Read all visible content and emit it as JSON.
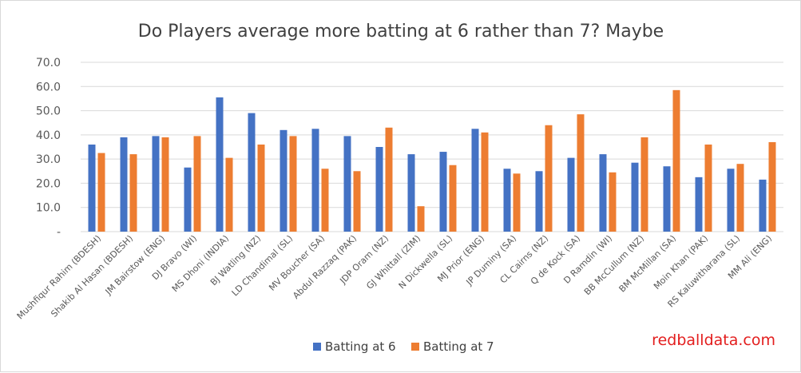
{
  "chart_data": {
    "type": "bar",
    "title": "Do Players average more batting at 6 rather than 7? Maybe",
    "xlabel": "",
    "ylabel": "",
    "ylim": [
      0,
      70
    ],
    "yticks": [
      "-",
      "10.0",
      "20.0",
      "30.0",
      "40.0",
      "50.0",
      "60.0",
      "70.0"
    ],
    "grid": true,
    "legend_position": "bottom",
    "categories": [
      "Mushfiqur Rahim (BDESH)",
      "Shakib Al Hasan (BDESH)",
      "JM Bairstow (ENG)",
      "DJ Bravo (WI)",
      "MS Dhoni (INDIA)",
      "BJ Watling (NZ)",
      "LD Chandimal (SL)",
      "MV Boucher (SA)",
      "Abdul Razzaq (PAK)",
      "JDP Oram (NZ)",
      "GJ Whittall (ZIM)",
      "N Dickwella (SL)",
      "MJ Prior (ENG)",
      "JP Duminy (SA)",
      "CL Cairns (NZ)",
      "Q de Kock (SA)",
      "D Ramdin (WI)",
      "BB McCullum (NZ)",
      "BM McMillan (SA)",
      "Moin Khan (PAK)",
      "RS Kaluwitharana (SL)",
      "MM Ali (ENG)"
    ],
    "series": [
      {
        "name": "Batting at 6",
        "color": "#4472C4",
        "values": [
          36.0,
          39.0,
          39.5,
          26.5,
          55.5,
          49.0,
          42.0,
          42.5,
          39.5,
          35.0,
          32.0,
          33.0,
          42.5,
          26.0,
          25.0,
          30.5,
          32.0,
          28.5,
          27.0,
          22.5,
          26.0,
          21.5
        ]
      },
      {
        "name": "Batting at 7",
        "color": "#ED7D31",
        "values": [
          32.5,
          32.0,
          39.0,
          39.5,
          30.5,
          36.0,
          39.5,
          26.0,
          25.0,
          43.0,
          10.5,
          27.5,
          41.0,
          24.0,
          44.0,
          48.5,
          24.5,
          39.0,
          58.5,
          36.0,
          28.0,
          37.0
        ]
      }
    ]
  },
  "watermark": "redballdata.com"
}
